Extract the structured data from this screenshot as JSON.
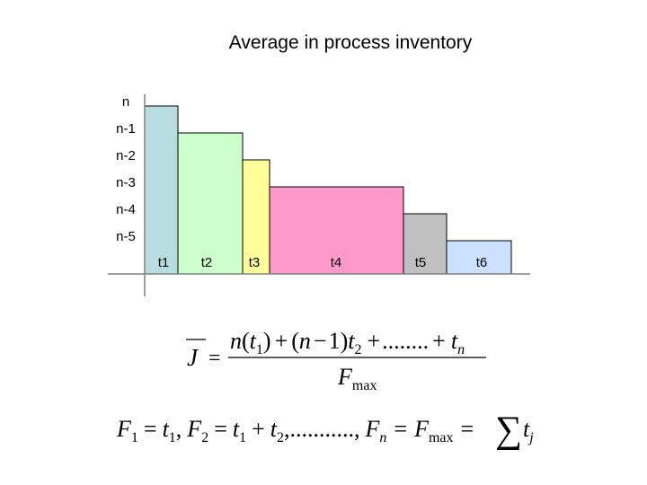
{
  "title": "Average in process inventory",
  "colors": {
    "axis": "#808080",
    "stroke": "#000000"
  },
  "chart_data": {
    "type": "bar",
    "y_levels": [
      "n",
      "n-1",
      "n-2",
      "n-3",
      "n-4",
      "n-5"
    ],
    "bars": [
      {
        "label": "t1",
        "level": 6,
        "color": "#b8dde0"
      },
      {
        "label": "t2",
        "level": 5,
        "color": "#ccffcc"
      },
      {
        "label": "t3",
        "level": 4,
        "color": "#ffff99"
      },
      {
        "label": "t4",
        "level": 3,
        "color": "#ff99cc"
      },
      {
        "label": "t5",
        "level": 2,
        "color": "#c0c0c0"
      },
      {
        "label": "t6",
        "level": 1,
        "color": "#cce0ff"
      }
    ]
  },
  "formula1": {
    "lhs": "J",
    "eq": "=",
    "numerator": {
      "n": "n",
      "open1": "(",
      "t": "t",
      "sub1": "1",
      "close1": ")",
      "plus1": "+",
      "open2": "(",
      "n2": "n",
      "minus": "−",
      "one": "1",
      "close2": ")",
      "t2": "t",
      "sub2": "2",
      "plus2": "+",
      "dots": "........",
      "plus3": "+",
      "tn": "t",
      "subn": "n"
    },
    "denominator": {
      "F": "F",
      "sub": "max"
    }
  },
  "formula2": {
    "F1": "F",
    "s1": "1",
    "eq1": "=",
    "t1": "t",
    "ts1": "1",
    "c1": ",",
    "F2": "F",
    "s2": "2",
    "eq2": "=",
    "t2a": "t",
    "ts2a": "1",
    "plus": "+",
    "t2b": "t",
    "ts2b": "2",
    "c2": ",",
    "dots": "...........",
    "c3": ",",
    "Fn": "F",
    "sn": "n",
    "eq3": "=",
    "Fm": "F",
    "sm": "max",
    "eq4": "=",
    "sum": "∑",
    "tj": "t",
    "sj": "j"
  }
}
